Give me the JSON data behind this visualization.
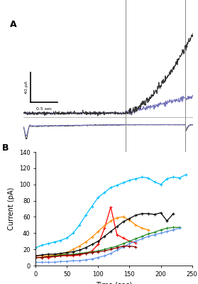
{
  "panel_A": {
    "scalebar_text_y": "40 pA",
    "scalebar_text_x": "0.5 sec",
    "vline_x": 0.6,
    "vline2_x": 0.955
  },
  "panel_B": {
    "xlabel": "Time (sec)",
    "ylabel": "Current (pA)",
    "xlim": [
      0,
      250
    ],
    "ylim": [
      0,
      140
    ],
    "xticks": [
      0,
      50,
      100,
      150,
      200,
      250
    ],
    "yticks": [
      0,
      20,
      40,
      60,
      80,
      100,
      120,
      140
    ],
    "series": [
      {
        "color": "#00BFFF",
        "x": [
          0,
          10,
          20,
          30,
          40,
          50,
          60,
          70,
          80,
          90,
          100,
          110,
          120,
          130,
          140,
          150,
          160,
          170,
          180,
          190,
          200,
          210,
          220,
          230,
          240
        ],
        "y": [
          22,
          25,
          27,
          29,
          31,
          34,
          40,
          50,
          62,
          73,
          84,
          90,
          96,
          99,
          102,
          105,
          107,
          109,
          108,
          103,
          100,
          107,
          109,
          108,
          112
        ]
      },
      {
        "color": "#FF0000",
        "x": [
          0,
          10,
          20,
          30,
          40,
          50,
          60,
          70,
          80,
          90,
          100,
          110,
          120,
          130,
          140,
          150,
          160
        ],
        "y": [
          10,
          10,
          10,
          11,
          12,
          12,
          12,
          13,
          15,
          18,
          26,
          46,
          72,
          38,
          34,
          30,
          28
        ]
      },
      {
        "color": "#FF8C00",
        "x": [
          0,
          10,
          20,
          30,
          40,
          50,
          60,
          70,
          80,
          90,
          100,
          110,
          120,
          130,
          140,
          150,
          160,
          170,
          180
        ],
        "y": [
          12,
          12,
          12,
          13,
          14,
          16,
          20,
          24,
          29,
          35,
          42,
          49,
          55,
          59,
          60,
          56,
          50,
          46,
          44
        ]
      },
      {
        "color": "#000000",
        "x": [
          0,
          10,
          20,
          30,
          40,
          50,
          60,
          70,
          80,
          90,
          100,
          110,
          120,
          130,
          140,
          150,
          160,
          170,
          180,
          190,
          200,
          210,
          220
        ],
        "y": [
          12,
          13,
          14,
          14,
          15,
          16,
          17,
          19,
          22,
          26,
          30,
          36,
          42,
          48,
          54,
          58,
          62,
          64,
          64,
          63,
          65,
          55,
          64
        ]
      },
      {
        "color": "#228B22",
        "x": [
          0,
          10,
          20,
          30,
          40,
          50,
          60,
          70,
          80,
          90,
          100,
          110,
          120,
          130,
          140,
          150,
          160,
          170,
          180,
          190,
          200,
          210,
          220,
          230
        ],
        "y": [
          10,
          10,
          11,
          12,
          13,
          14,
          14,
          15,
          16,
          17,
          18,
          20,
          22,
          24,
          27,
          30,
          33,
          36,
          39,
          41,
          44,
          46,
          47,
          47
        ]
      },
      {
        "color": "#6495ED",
        "x": [
          0,
          10,
          20,
          30,
          40,
          50,
          60,
          70,
          80,
          90,
          100,
          110,
          120,
          130,
          140,
          150,
          160,
          170,
          180,
          190,
          200,
          210,
          220,
          230
        ],
        "y": [
          4,
          4,
          4,
          4,
          5,
          5,
          6,
          6,
          7,
          8,
          10,
          12,
          15,
          19,
          23,
          27,
          30,
          33,
          36,
          38,
          40,
          42,
          44,
          46
        ]
      },
      {
        "color": "#8B0000",
        "x": [
          0,
          10,
          20,
          30,
          40,
          50,
          60,
          70,
          80,
          90,
          100,
          110,
          120,
          130,
          140,
          150,
          160
        ],
        "y": [
          10,
          10,
          11,
          11,
          12,
          13,
          13,
          14,
          15,
          16,
          17,
          18,
          20,
          22,
          24,
          24,
          23
        ]
      }
    ]
  }
}
